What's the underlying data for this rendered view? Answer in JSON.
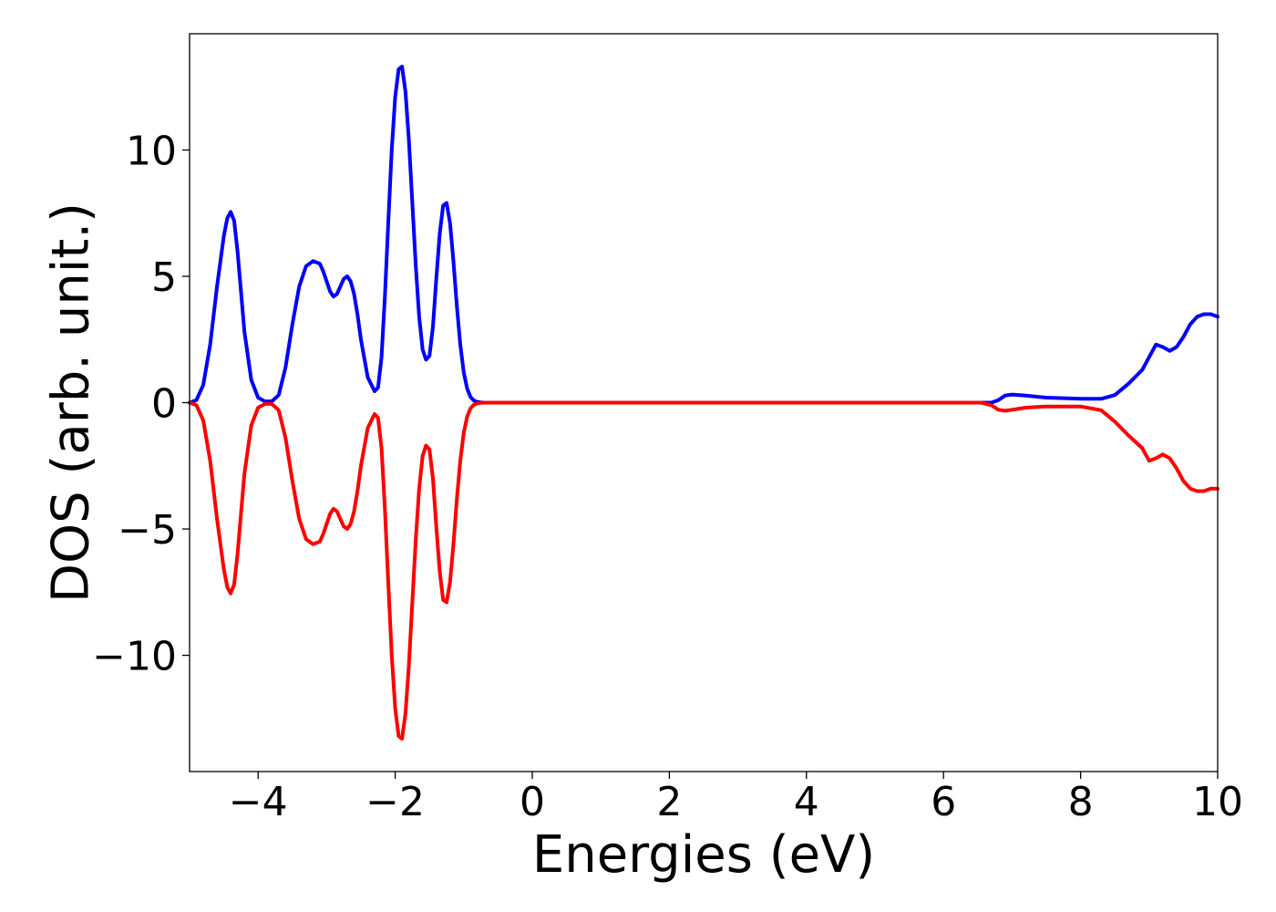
{
  "chart_data": {
    "type": "line",
    "title": "",
    "xlabel": "Energies (eV)",
    "ylabel": "DOS (arb. unit.)",
    "xlim": [
      -5,
      10
    ],
    "ylim": [
      -14.6,
      14.6
    ],
    "grid": false,
    "legend": "none",
    "xticks": [
      -4,
      -2,
      0,
      2,
      4,
      6,
      8,
      10
    ],
    "yticks": [
      -10,
      -5,
      0,
      5,
      10
    ],
    "xtick_labels": [
      "−4",
      "−2",
      "0",
      "2",
      "4",
      "6",
      "8",
      "10"
    ],
    "ytick_labels": [
      "−10",
      "−5",
      "0",
      "5",
      "10"
    ],
    "series": [
      {
        "color": "#0000ff",
        "x": [
          -5.0,
          -4.9,
          -4.8,
          -4.7,
          -4.6,
          -4.5,
          -4.45,
          -4.4,
          -4.35,
          -4.3,
          -4.25,
          -4.2,
          -4.1,
          -4.0,
          -3.9,
          -3.8,
          -3.7,
          -3.6,
          -3.5,
          -3.4,
          -3.3,
          -3.2,
          -3.1,
          -3.05,
          -3.0,
          -2.95,
          -2.9,
          -2.85,
          -2.8,
          -2.75,
          -2.7,
          -2.65,
          -2.6,
          -2.55,
          -2.5,
          -2.4,
          -2.3,
          -2.25,
          -2.2,
          -2.15,
          -2.1,
          -2.05,
          -2.0,
          -1.95,
          -1.9,
          -1.85,
          -1.8,
          -1.75,
          -1.7,
          -1.65,
          -1.6,
          -1.55,
          -1.5,
          -1.45,
          -1.4,
          -1.35,
          -1.3,
          -1.25,
          -1.2,
          -1.15,
          -1.1,
          -1.05,
          -1.0,
          -0.95,
          -0.9,
          -0.85,
          -0.8,
          -0.75,
          -0.7,
          -0.65,
          -0.6,
          -0.55,
          -0.5,
          -0.4,
          0.0,
          2.0,
          4.0,
          6.0,
          6.4,
          6.55,
          6.7,
          6.8,
          6.9,
          7.0,
          7.2,
          7.5,
          8.0,
          8.3,
          8.5,
          8.7,
          8.9,
          9.0,
          9.1,
          9.2,
          9.3,
          9.4,
          9.5,
          9.6,
          9.7,
          9.8,
          9.9,
          10.0
        ],
        "y": [
          0.0,
          0.1,
          0.7,
          2.3,
          4.6,
          6.6,
          7.3,
          7.55,
          7.2,
          6.0,
          4.4,
          2.8,
          0.9,
          0.2,
          0.05,
          0.05,
          0.3,
          1.4,
          3.1,
          4.6,
          5.4,
          5.6,
          5.5,
          5.2,
          4.8,
          4.4,
          4.2,
          4.3,
          4.6,
          4.9,
          5.0,
          4.8,
          4.3,
          3.5,
          2.5,
          1.0,
          0.45,
          0.6,
          1.8,
          4.2,
          7.2,
          10.0,
          12.1,
          13.2,
          13.3,
          12.3,
          10.4,
          7.9,
          5.4,
          3.4,
          2.1,
          1.7,
          1.85,
          3.0,
          4.9,
          6.7,
          7.8,
          7.9,
          7.1,
          5.6,
          3.8,
          2.3,
          1.2,
          0.55,
          0.22,
          0.08,
          0.03,
          0.01,
          0.0,
          0.0,
          0.0,
          0.0,
          0.0,
          0.0,
          0.0,
          0.0,
          0.0,
          0.0,
          0.0,
          0.0,
          0.0,
          0.1,
          0.28,
          0.32,
          0.28,
          0.2,
          0.15,
          0.15,
          0.3,
          0.75,
          1.3,
          1.8,
          2.3,
          2.2,
          2.05,
          2.2,
          2.6,
          3.1,
          3.4,
          3.5,
          3.5,
          3.4
        ]
      },
      {
        "color": "#ff0000",
        "x": [
          -5.0,
          -4.9,
          -4.8,
          -4.7,
          -4.6,
          -4.5,
          -4.45,
          -4.4,
          -4.35,
          -4.3,
          -4.25,
          -4.2,
          -4.1,
          -4.0,
          -3.9,
          -3.8,
          -3.7,
          -3.6,
          -3.5,
          -3.4,
          -3.3,
          -3.2,
          -3.1,
          -3.05,
          -3.0,
          -2.95,
          -2.9,
          -2.85,
          -2.8,
          -2.75,
          -2.7,
          -2.65,
          -2.6,
          -2.55,
          -2.5,
          -2.4,
          -2.3,
          -2.25,
          -2.2,
          -2.15,
          -2.1,
          -2.05,
          -2.0,
          -1.95,
          -1.9,
          -1.85,
          -1.8,
          -1.75,
          -1.7,
          -1.65,
          -1.6,
          -1.55,
          -1.5,
          -1.45,
          -1.4,
          -1.35,
          -1.3,
          -1.25,
          -1.2,
          -1.15,
          -1.1,
          -1.05,
          -1.0,
          -0.95,
          -0.9,
          -0.85,
          -0.8,
          -0.75,
          -0.7,
          -0.65,
          -0.6,
          -0.55,
          -0.5,
          -0.4,
          0.0,
          2.0,
          4.0,
          6.0,
          6.4,
          6.55,
          6.7,
          6.8,
          6.9,
          7.0,
          7.2,
          7.5,
          8.0,
          8.3,
          8.5,
          8.7,
          8.9,
          9.0,
          9.1,
          9.2,
          9.3,
          9.4,
          9.5,
          9.6,
          9.7,
          9.8,
          9.9,
          10.0
        ],
        "y": [
          0.0,
          -0.1,
          -0.7,
          -2.3,
          -4.6,
          -6.6,
          -7.3,
          -7.55,
          -7.2,
          -6.0,
          -4.4,
          -2.8,
          -0.9,
          -0.2,
          -0.05,
          -0.05,
          -0.3,
          -1.4,
          -3.1,
          -4.6,
          -5.4,
          -5.6,
          -5.5,
          -5.2,
          -4.8,
          -4.4,
          -4.2,
          -4.3,
          -4.6,
          -4.9,
          -5.0,
          -4.8,
          -4.3,
          -3.5,
          -2.5,
          -1.0,
          -0.45,
          -0.6,
          -1.8,
          -4.2,
          -7.2,
          -10.0,
          -12.1,
          -13.2,
          -13.3,
          -12.3,
          -10.4,
          -7.9,
          -5.4,
          -3.4,
          -2.1,
          -1.7,
          -1.85,
          -3.0,
          -4.9,
          -6.7,
          -7.8,
          -7.9,
          -7.1,
          -5.6,
          -3.8,
          -2.3,
          -1.2,
          -0.55,
          -0.22,
          -0.08,
          -0.03,
          -0.01,
          0.0,
          0.0,
          0.0,
          0.0,
          0.0,
          0.0,
          0.0,
          0.0,
          0.0,
          0.0,
          0.0,
          0.0,
          -0.1,
          -0.28,
          -0.32,
          -0.28,
          -0.2,
          -0.15,
          -0.15,
          -0.3,
          -0.75,
          -1.3,
          -1.8,
          -2.3,
          -2.2,
          -2.05,
          -2.2,
          -2.6,
          -3.1,
          -3.4,
          -3.5,
          -3.5,
          -3.4,
          -3.4
        ]
      }
    ]
  }
}
